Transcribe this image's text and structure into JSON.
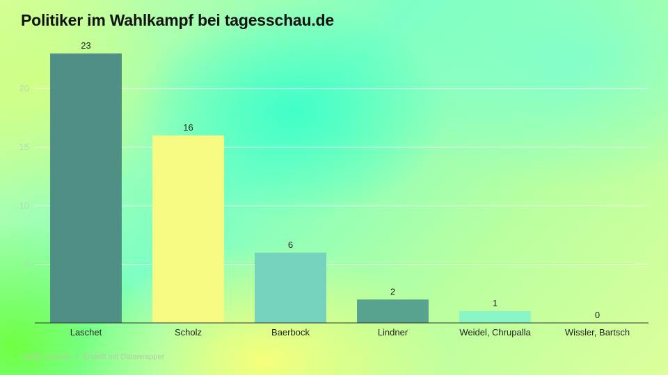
{
  "title": "Politiker im Wahlkampf bei tagesschau.de",
  "footer": {
    "graphic_prefix": "Grafik:",
    "author": "azernis",
    "separator": "•",
    "made_with": "Erstellt mit Datawrapper"
  },
  "colors": {
    "laschet": "#4f8f86",
    "scholz": "#f6fa82",
    "baerbock": "#74d2bd",
    "lindner": "#57a38f",
    "weidel_chrupalla": "#8af5c7",
    "wissler_bartsch": "#c9a6c4",
    "gridline": "#ffffff",
    "axis": "#333333"
  },
  "chart_data": {
    "type": "bar",
    "title": "Politiker im Wahlkampf bei tagesschau.de",
    "categories": [
      "Laschet",
      "Scholz",
      "Baerbock",
      "Lindner",
      "Weidel, Chrupalla",
      "Wissler, Bartsch"
    ],
    "values": [
      23,
      16,
      6,
      2,
      1,
      0
    ],
    "value_labels": [
      "23",
      "16",
      "6",
      "2",
      "1",
      "0"
    ],
    "bar_colors": [
      "#4f8f86",
      "#f6fa82",
      "#74d2bd",
      "#57a38f",
      "#8af5c7",
      "#c9a6c4"
    ],
    "xlabel": "",
    "ylabel": "",
    "ylim": [
      0,
      23
    ],
    "yticks": [
      5,
      10,
      15,
      20
    ],
    "ytick_labels": [
      "5",
      "10",
      "15",
      "20"
    ],
    "grid": true,
    "legend": "none"
  }
}
